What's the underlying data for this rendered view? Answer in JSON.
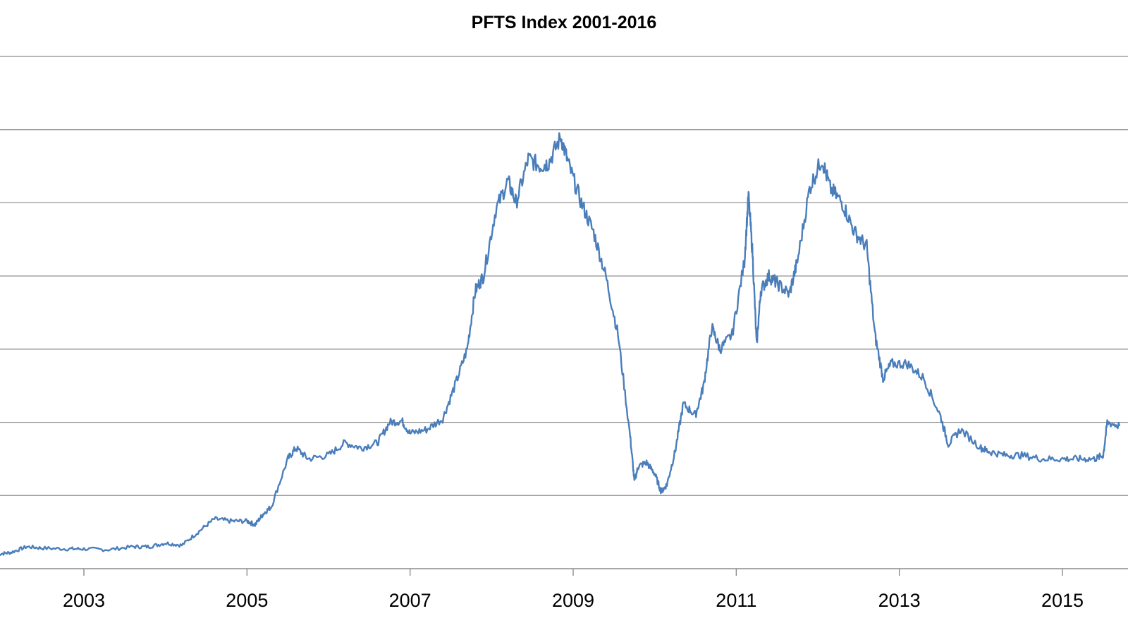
{
  "chart_data": {
    "type": "line",
    "title": "PFTS Index 2001-2016",
    "xlabel": "",
    "ylabel": "",
    "x_tick_labels": [
      "2003",
      "2005",
      "2007",
      "2009",
      "2011",
      "2013",
      "2015"
    ],
    "y_tick_labels_visible": false,
    "gridlines": "horizontal",
    "xlim": [
      2001.95,
      2015.7
    ],
    "ylim_relative": [
      0,
      7
    ],
    "line_color": "#4a7ebb",
    "legend": "none",
    "series": [
      {
        "points": [
          [
            2001.95,
            0.2
          ],
          [
            2002.1,
            0.22
          ],
          [
            2002.3,
            0.3
          ],
          [
            2002.5,
            0.28
          ],
          [
            2002.8,
            0.27
          ],
          [
            2003.0,
            0.27
          ],
          [
            2003.3,
            0.26
          ],
          [
            2003.6,
            0.3
          ],
          [
            2003.8,
            0.3
          ],
          [
            2004.0,
            0.35
          ],
          [
            2004.2,
            0.32
          ],
          [
            2004.4,
            0.5
          ],
          [
            2004.6,
            0.68
          ],
          [
            2004.8,
            0.65
          ],
          [
            2005.0,
            0.65
          ],
          [
            2005.1,
            0.6
          ],
          [
            2005.2,
            0.75
          ],
          [
            2005.3,
            0.85
          ],
          [
            2005.5,
            1.5
          ],
          [
            2005.6,
            1.65
          ],
          [
            2005.75,
            1.5
          ],
          [
            2006.0,
            1.55
          ],
          [
            2006.2,
            1.72
          ],
          [
            2006.4,
            1.65
          ],
          [
            2006.6,
            1.72
          ],
          [
            2006.75,
            2.0
          ],
          [
            2006.9,
            2.02
          ],
          [
            2007.0,
            1.85
          ],
          [
            2007.2,
            1.9
          ],
          [
            2007.4,
            2.05
          ],
          [
            2007.55,
            2.5
          ],
          [
            2007.7,
            3.0
          ],
          [
            2007.8,
            3.8
          ],
          [
            2007.9,
            4.0
          ],
          [
            2008.05,
            4.9
          ],
          [
            2008.2,
            5.3
          ],
          [
            2008.3,
            5.0
          ],
          [
            2008.45,
            5.6
          ],
          [
            2008.6,
            5.5
          ],
          [
            2008.7,
            5.55
          ],
          [
            2008.85,
            5.9
          ],
          [
            2008.95,
            5.5
          ],
          [
            2009.1,
            5.0
          ],
          [
            2009.25,
            4.6
          ],
          [
            2009.4,
            4.0
          ],
          [
            2009.55,
            3.2
          ],
          [
            2009.7,
            1.8
          ],
          [
            2009.75,
            1.2
          ],
          [
            2009.8,
            1.4
          ],
          [
            2009.9,
            1.45
          ],
          [
            2010.0,
            1.3
          ],
          [
            2010.08,
            1.05
          ],
          [
            2010.15,
            1.15
          ],
          [
            2010.25,
            1.6
          ],
          [
            2010.35,
            2.25
          ],
          [
            2010.5,
            2.1
          ],
          [
            2010.6,
            2.5
          ],
          [
            2010.7,
            3.3
          ],
          [
            2010.8,
            3.0
          ],
          [
            2010.95,
            3.2
          ],
          [
            2011.1,
            4.2
          ],
          [
            2011.15,
            5.1
          ],
          [
            2011.2,
            4.3
          ],
          [
            2011.25,
            3.05
          ],
          [
            2011.3,
            3.8
          ],
          [
            2011.4,
            4.0
          ],
          [
            2011.5,
            3.9
          ],
          [
            2011.65,
            3.75
          ],
          [
            2011.75,
            4.2
          ],
          [
            2011.9,
            5.2
          ],
          [
            2012.05,
            5.6
          ],
          [
            2012.15,
            5.2
          ],
          [
            2012.3,
            5.0
          ],
          [
            2012.45,
            4.6
          ],
          [
            2012.6,
            4.4
          ],
          [
            2012.7,
            3.2
          ],
          [
            2012.8,
            2.6
          ],
          [
            2012.9,
            2.8
          ],
          [
            2013.1,
            2.8
          ],
          [
            2013.3,
            2.6
          ],
          [
            2013.5,
            2.1
          ],
          [
            2013.6,
            1.7
          ],
          [
            2013.75,
            1.9
          ],
          [
            2014.0,
            1.65
          ],
          [
            2014.1,
            1.6
          ],
          [
            2014.3,
            1.55
          ],
          [
            2014.5,
            1.55
          ],
          [
            2014.75,
            1.5
          ],
          [
            2015.0,
            1.5
          ],
          [
            2015.2,
            1.5
          ],
          [
            2015.4,
            1.5
          ],
          [
            2015.5,
            1.55
          ],
          [
            2015.55,
            2.0
          ],
          [
            2015.7,
            1.95
          ]
        ]
      }
    ]
  }
}
